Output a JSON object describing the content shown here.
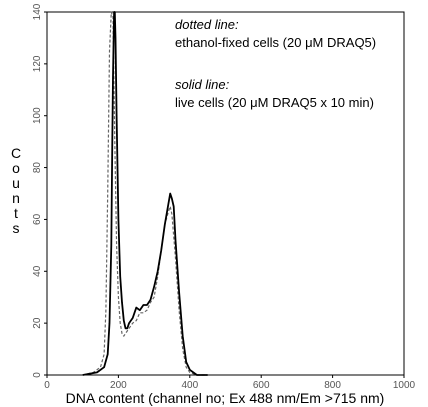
{
  "chart_data": {
    "type": "line",
    "title": "",
    "xlabel": "DNA content (channel no; Ex 488 nm/Em >715 nm)",
    "ylabel": "Counts",
    "xlim": [
      0,
      1000
    ],
    "ylim": [
      0,
      140
    ],
    "x_ticks": [
      "0",
      "200",
      "400",
      "600",
      "800",
      "1000"
    ],
    "y_ticks": [
      "0",
      "20",
      "40",
      "60",
      "80",
      "100",
      "120",
      "140"
    ],
    "grid": false,
    "annotations": {
      "dotted_heading": "dotted line:",
      "dotted_desc": "ethanol-fixed cells (20 μM DRAQ5)",
      "solid_heading": "solid line:",
      "solid_desc": "live cells (20 μM DRAQ5 x 10 min)"
    },
    "series": [
      {
        "style": "dashed",
        "x": [
          100,
          130,
          150,
          160,
          165,
          170,
          175,
          180,
          185,
          190,
          195,
          200,
          205,
          210,
          215,
          220,
          230,
          240,
          250,
          260,
          270,
          280,
          290,
          300,
          310,
          320,
          330,
          340,
          345,
          350,
          360,
          370,
          380,
          390,
          400,
          420,
          450
        ],
        "y": [
          0,
          1,
          3,
          8,
          25,
          70,
          125,
          145,
          138,
          90,
          50,
          30,
          20,
          16,
          15,
          16,
          18,
          20,
          21,
          24,
          24,
          25,
          28,
          30,
          38,
          48,
          58,
          63,
          65,
          62,
          45,
          25,
          10,
          3,
          1,
          0,
          0
        ]
      },
      {
        "style": "solid",
        "x": [
          100,
          140,
          160,
          170,
          175,
          180,
          183,
          185,
          188,
          190,
          192,
          195,
          200,
          205,
          210,
          215,
          220,
          225,
          230,
          240,
          250,
          260,
          270,
          280,
          290,
          300,
          310,
          320,
          330,
          340,
          345,
          350,
          355,
          360,
          370,
          380,
          390,
          400,
          420,
          450
        ],
        "y": [
          0,
          1,
          3,
          8,
          20,
          50,
          90,
          115,
          140,
          145,
          130,
          100,
          60,
          38,
          28,
          21,
          18,
          18,
          20,
          22,
          26,
          25,
          27,
          27,
          29,
          34,
          40,
          48,
          58,
          66,
          70,
          68,
          65,
          52,
          32,
          15,
          5,
          2,
          0,
          0
        ]
      }
    ]
  }
}
